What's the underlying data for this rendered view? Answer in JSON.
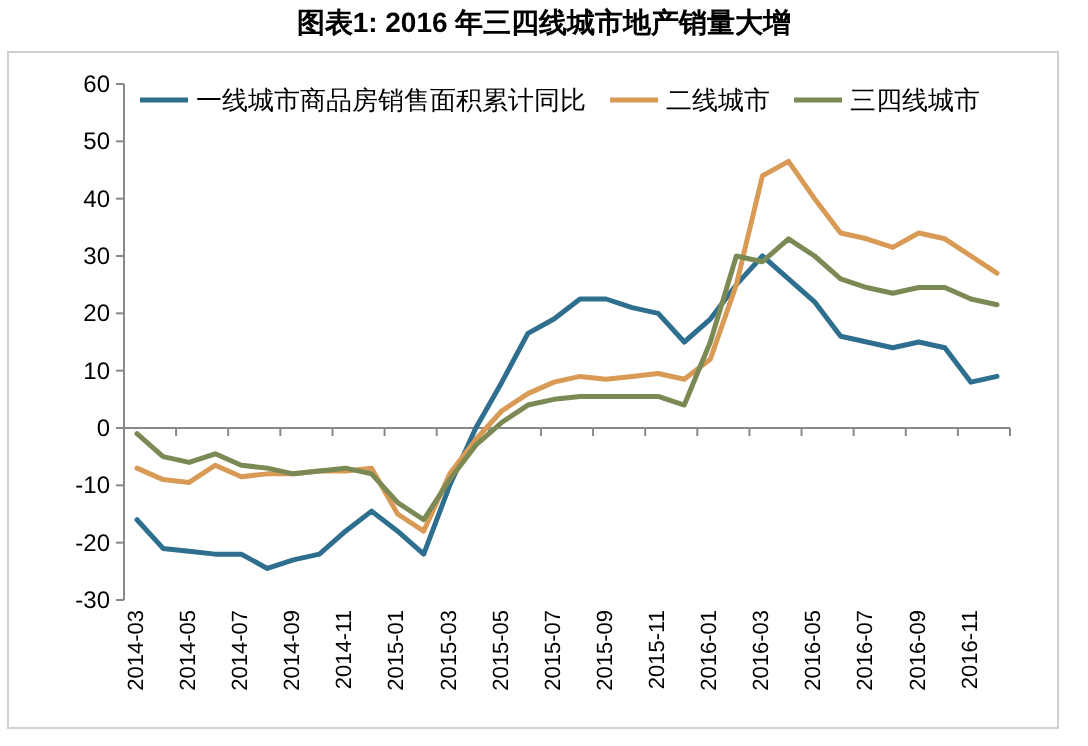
{
  "chart_data": {
    "type": "line",
    "title": "图表1:  2016 年三四线城市地产销量大增",
    "categories": [
      "2014-03",
      null,
      "2014-05",
      null,
      "2014-07",
      null,
      "2014-09",
      null,
      "2014-11",
      null,
      "2015-01",
      null,
      "2015-03",
      null,
      "2015-05",
      null,
      "2015-07",
      null,
      "2015-09",
      null,
      "2015-11",
      null,
      "2016-01",
      null,
      "2016-03",
      null,
      "2016-05",
      null,
      "2016-07",
      null,
      "2016-09",
      null,
      "2016-11",
      null
    ],
    "series": [
      {
        "name": "一线城市商品房销售面积累计同比",
        "color": "#2e6e8e",
        "values": [
          -16,
          -21,
          -21.5,
          -22,
          -22,
          -24.5,
          -23,
          -22,
          -18,
          -14.5,
          -18,
          -22,
          -10,
          0,
          8,
          16.5,
          19,
          22.5,
          22.5,
          21,
          20,
          15,
          19,
          25,
          30,
          26,
          22,
          16,
          15,
          14,
          15,
          14,
          8,
          9
        ]
      },
      {
        "name": "二线城市",
        "color": "#d99a55",
        "values": [
          -7,
          -9,
          -9.5,
          -6.5,
          -8.5,
          -8,
          -8,
          -7.5,
          -7.5,
          -7,
          -15,
          -18,
          -8,
          -2,
          3,
          6,
          8,
          9,
          8.5,
          9,
          9.5,
          8.5,
          12,
          25,
          44,
          46.5,
          40,
          34,
          33,
          31.5,
          34,
          33,
          30,
          27
        ]
      },
      {
        "name": "三四线城市",
        "color": "#7b8a55",
        "values": [
          -1,
          -5,
          -6,
          -4.5,
          -6.5,
          -7,
          -8,
          -7.5,
          -7,
          -8,
          -13,
          -16,
          -9,
          -3,
          1,
          4,
          5,
          5.5,
          5.5,
          5.5,
          5.5,
          4,
          15,
          30,
          29,
          33,
          30,
          26,
          24.5,
          23.5,
          24.5,
          24.5,
          22.5,
          21.5
        ]
      }
    ],
    "ylim": [
      -30,
      60
    ],
    "yticks": [
      -30,
      -20,
      -10,
      0,
      10,
      20,
      30,
      40,
      50,
      60
    ],
    "legend": "top left",
    "marker": "none",
    "line_style": "solid"
  }
}
